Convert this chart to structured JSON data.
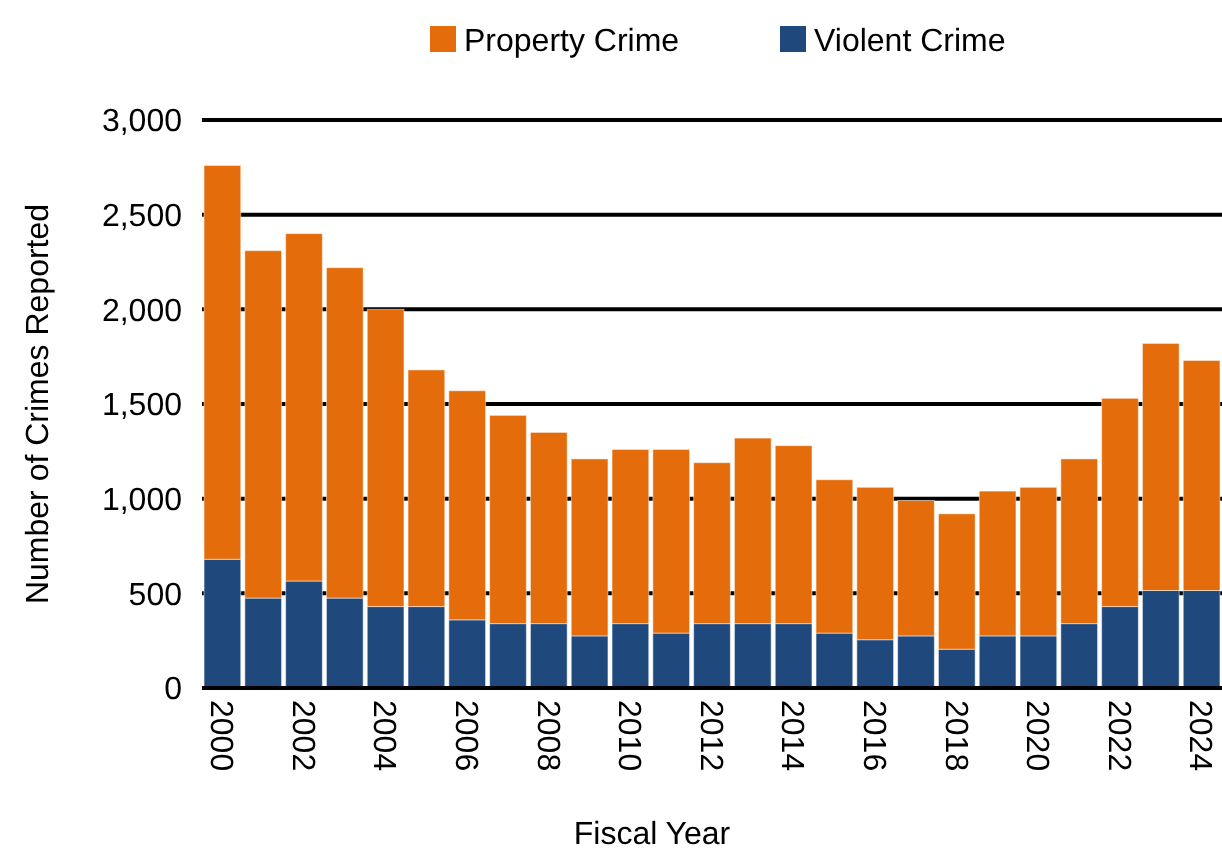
{
  "chart_data": {
    "type": "bar",
    "stacked": true,
    "xlabel": "Fiscal Year",
    "ylabel": "Number of Crimes Reported",
    "categories": [
      "2000",
      null,
      "2002",
      null,
      "2004",
      null,
      "2006",
      null,
      "2008",
      null,
      "2010",
      null,
      "2012",
      null,
      "2014",
      null,
      "2016",
      null,
      "2018",
      null,
      "2020",
      null,
      "2022",
      null,
      "2024"
    ],
    "series": [
      {
        "name": "Violent Crime",
        "color": "#1f497d",
        "values": [
          680,
          475,
          565,
          475,
          430,
          430,
          360,
          340,
          340,
          275,
          340,
          290,
          340,
          340,
          340,
          290,
          255,
          275,
          205,
          275,
          275,
          340,
          430,
          515,
          515
        ]
      },
      {
        "name": "Property Crime",
        "color": "#e46c0a",
        "values": [
          2080,
          1835,
          1835,
          1745,
          1570,
          1250,
          1210,
          1100,
          1010,
          935,
          920,
          970,
          850,
          980,
          940,
          810,
          805,
          715,
          715,
          765,
          785,
          870,
          1100,
          1305,
          1215
        ]
      }
    ],
    "ylim": [
      0,
      3000
    ],
    "yticks": [
      0,
      {
        "value": 500,
        "label": "500"
      },
      {
        "value": 1000,
        "label": "1,000"
      },
      {
        "value": 1500,
        "label": "1,500"
      },
      {
        "value": 2000,
        "label": "2,000"
      },
      {
        "value": 2500,
        "label": "2,500"
      },
      {
        "value": 3000,
        "label": "3,000"
      }
    ],
    "grid": "y",
    "legend": "top"
  }
}
